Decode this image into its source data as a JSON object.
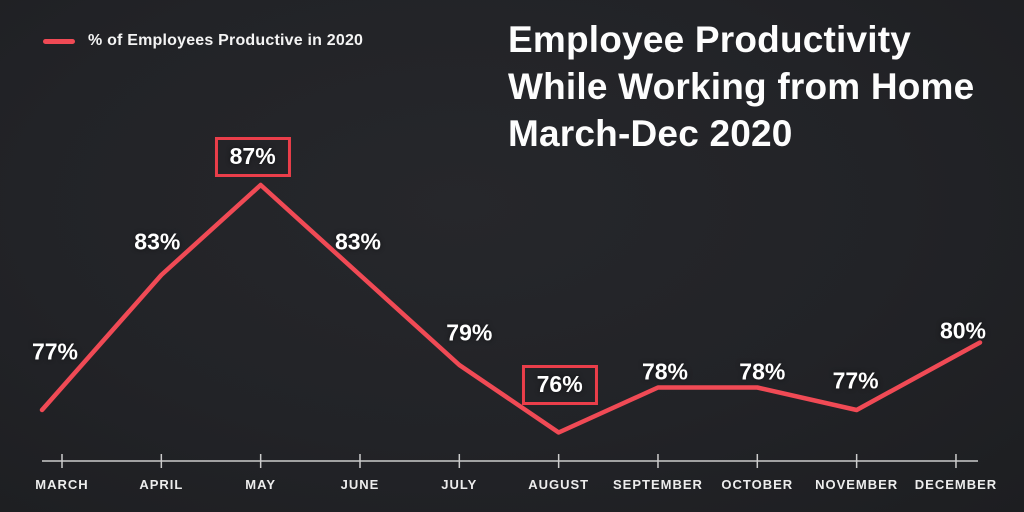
{
  "legend": {
    "label": "% of Employees Productive in 2020"
  },
  "title": {
    "line1": "Employee Productivity",
    "line2": "While Working from Home",
    "line3": "March-Dec 2020"
  },
  "colors": {
    "background": "#222327",
    "accent_red": "#f04a55",
    "box_border_red": "#ea3e4a",
    "axis": "#cccccc",
    "text": "#ffffff"
  },
  "chart_data": {
    "type": "line",
    "title": "Employee Productivity While Working from Home March-Dec 2020",
    "series_name": "% of Employees Productive in 2020",
    "categories": [
      "MARCH",
      "APRIL",
      "MAY",
      "JUNE",
      "JULY",
      "AUGUST",
      "SEPTEMBER",
      "OCTOBER",
      "NOVEMBER",
      "DECEMBER"
    ],
    "values": [
      77,
      83,
      87,
      83,
      79,
      76,
      78,
      78,
      77,
      80
    ],
    "unit": "%",
    "boxed": [
      false,
      false,
      true,
      false,
      false,
      true,
      false,
      false,
      false,
      false
    ],
    "emphasized_points": [
      "MAY",
      "AUGUST"
    ],
    "line_color": "#f04a55",
    "ylim": [
      74,
      89
    ],
    "grid": false,
    "y_axis_shown": false,
    "legend_position": "top-left"
  }
}
